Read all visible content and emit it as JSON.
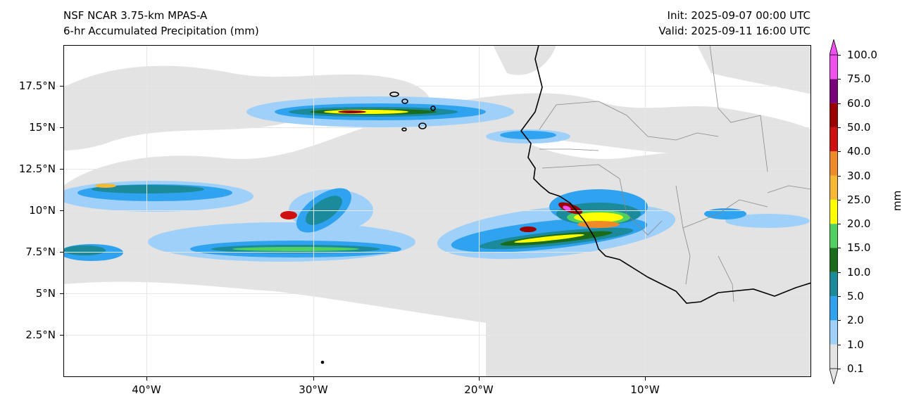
{
  "title": {
    "model": "NSF NCAR 3.75-km MPAS-A",
    "field": "6-hr Accumulated Precipitation (mm)",
    "init": "Init: 2025-09-07 00:00 UTC",
    "valid": "Valid: 2025-09-11 16:00 UTC"
  },
  "axes": {
    "lat_labels": [
      "17.5°N",
      "15°N",
      "12.5°N",
      "10°N",
      "7.5°N",
      "5°N",
      "2.5°N"
    ],
    "lon_labels": [
      "40°W",
      "30°W",
      "20°W",
      "10°W"
    ]
  },
  "colorbar": {
    "unit": "mm",
    "levels": [
      "0.1",
      "1.0",
      "2.0",
      "5.0",
      "10.0",
      "15.0",
      "20.0",
      "25.0",
      "30.0",
      "40.0",
      "50.0",
      "60.0",
      "75.0",
      "100.0"
    ],
    "colors": [
      "#e3e3e3",
      "#9fd0fa",
      "#2fa3ef",
      "#1b8a9a",
      "#1a6b1a",
      "#4fd060",
      "#ffff00",
      "#f5b830",
      "#ef8a28",
      "#d01010",
      "#9a0000",
      "#7a007a",
      "#f050f0"
    ],
    "colors_note": "13 bins between 0.1 and 100.0; arrow extensions at both ends"
  },
  "colors": {
    "coast": "#000000",
    "borders": "#888888",
    "grid": "#e6e6e6"
  }
}
